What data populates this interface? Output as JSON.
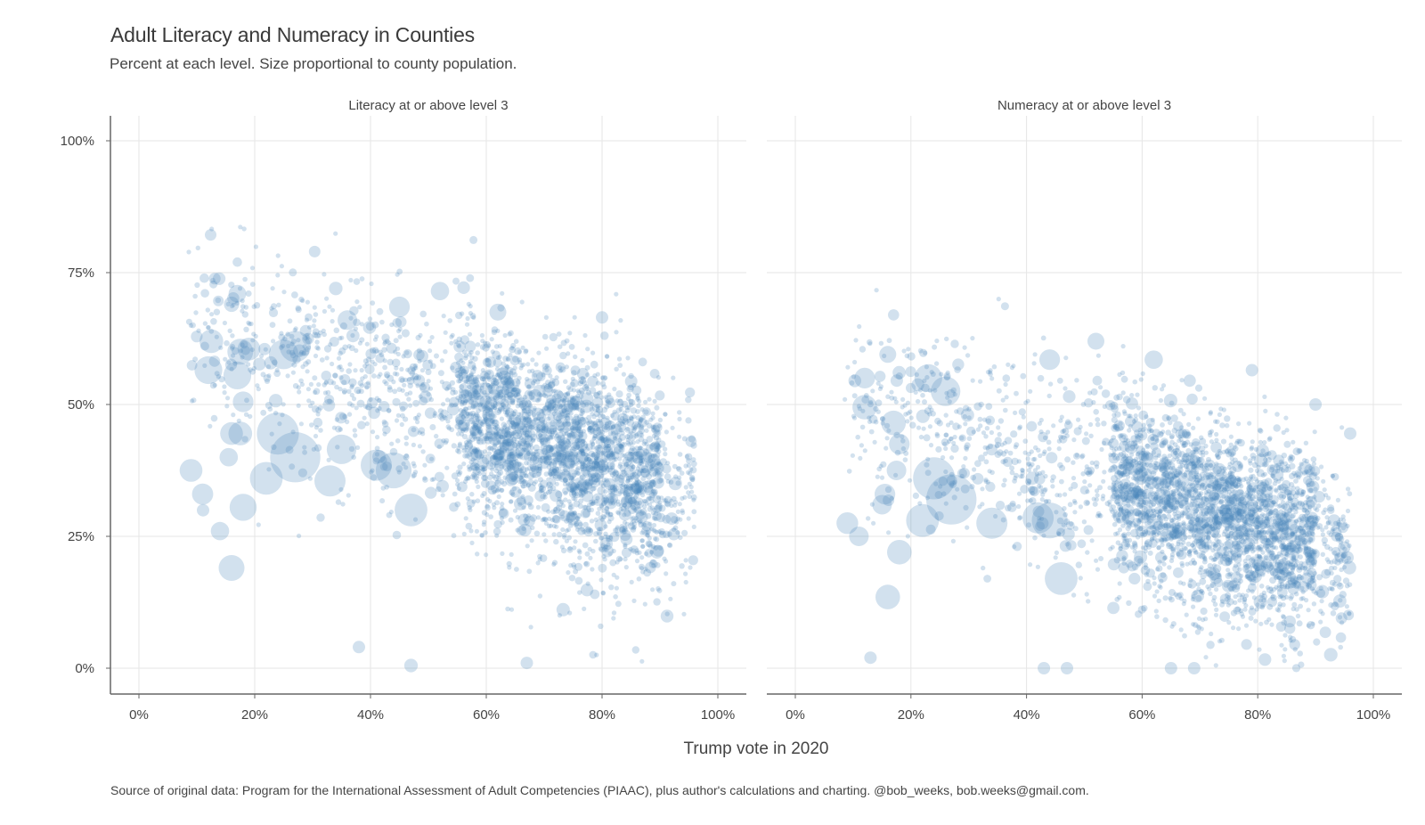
{
  "chart_data": {
    "type": "scatter",
    "title": "Adult Literacy and Numeracy in Counties",
    "subtitle": "Percent at each level. Size proportional to county population.",
    "xlabel": "Trump vote in 2020",
    "ylabel": "",
    "xlim": [
      -5,
      105
    ],
    "ylim": [
      -5,
      105
    ],
    "x_ticks": [
      0,
      20,
      40,
      60,
      80,
      100
    ],
    "x_tick_labels": [
      "0%",
      "20%",
      "40%",
      "60%",
      "80%",
      "100%"
    ],
    "y_ticks": [
      0,
      25,
      50,
      75,
      100
    ],
    "y_tick_labels": [
      "0%",
      "25%",
      "50%",
      "75%",
      "100%"
    ],
    "grid": true,
    "point_color": "#4a86bd",
    "point_opacity": 0.25,
    "facets": [
      {
        "label": "Literacy at or above level 3",
        "trend": {
          "center_x": 60,
          "center_y": 47,
          "slope": -0.38,
          "spread": 8.5
        },
        "points": [
          {
            "x": 17,
            "y": 77,
            "pop": 1
          },
          {
            "x": 12.5,
            "y": 62,
            "pop": 20
          },
          {
            "x": 12,
            "y": 56.5,
            "pop": 30
          },
          {
            "x": 17.5,
            "y": 60,
            "pop": 25
          },
          {
            "x": 19,
            "y": 60.5,
            "pop": 18
          },
          {
            "x": 17,
            "y": 55.5,
            "pop": 30
          },
          {
            "x": 18,
            "y": 50.5,
            "pop": 14
          },
          {
            "x": 16,
            "y": 44.5,
            "pop": 18
          },
          {
            "x": 17.5,
            "y": 44.5,
            "pop": 20
          },
          {
            "x": 15.5,
            "y": 40,
            "pop": 10
          },
          {
            "x": 9,
            "y": 37.5,
            "pop": 18
          },
          {
            "x": 11,
            "y": 33,
            "pop": 15
          },
          {
            "x": 18,
            "y": 30.5,
            "pop": 28
          },
          {
            "x": 14,
            "y": 26,
            "pop": 10
          },
          {
            "x": 16,
            "y": 19,
            "pop": 25
          },
          {
            "x": 24,
            "y": 44.5,
            "pop": 80
          },
          {
            "x": 27,
            "y": 40,
            "pop": 120
          },
          {
            "x": 22,
            "y": 36,
            "pop": 45
          },
          {
            "x": 33,
            "y": 35.5,
            "pop": 40
          },
          {
            "x": 35,
            "y": 41.5,
            "pop": 35
          },
          {
            "x": 47,
            "y": 30,
            "pop": 45
          },
          {
            "x": 41,
            "y": 38.5,
            "pop": 40
          },
          {
            "x": 44,
            "y": 37.5,
            "pop": 55
          },
          {
            "x": 27,
            "y": 61,
            "pop": 40
          },
          {
            "x": 25,
            "y": 59.5,
            "pop": 35
          },
          {
            "x": 36,
            "y": 66,
            "pop": 12
          },
          {
            "x": 52,
            "y": 71.5,
            "pop": 10
          },
          {
            "x": 45,
            "y": 68.5,
            "pop": 14
          },
          {
            "x": 62,
            "y": 67.5,
            "pop": 8
          },
          {
            "x": 80,
            "y": 66.5,
            "pop": 3
          },
          {
            "x": 47,
            "y": 0.5,
            "pop": 4
          },
          {
            "x": 67,
            "y": 1,
            "pop": 3
          },
          {
            "x": 38,
            "y": 4,
            "pop": 3
          },
          {
            "x": 16,
            "y": 69,
            "pop": 6
          },
          {
            "x": 17,
            "y": 71,
            "pop": 9
          },
          {
            "x": 34,
            "y": 72,
            "pop": 4
          }
        ]
      },
      {
        "label": "Numeracy at or above level 3",
        "trend": {
          "center_x": 60,
          "center_y": 34,
          "slope": -0.36,
          "spread": 8.0
        },
        "points": [
          {
            "x": 17,
            "y": 67,
            "pop": 2
          },
          {
            "x": 16,
            "y": 59.5,
            "pop": 8
          },
          {
            "x": 12,
            "y": 55,
            "pop": 14
          },
          {
            "x": 12,
            "y": 49.5,
            "pop": 22
          },
          {
            "x": 17,
            "y": 46.5,
            "pop": 22
          },
          {
            "x": 18,
            "y": 42.5,
            "pop": 14
          },
          {
            "x": 17.5,
            "y": 37.5,
            "pop": 12
          },
          {
            "x": 15.5,
            "y": 33,
            "pop": 14
          },
          {
            "x": 15,
            "y": 31,
            "pop": 12
          },
          {
            "x": 9,
            "y": 27.5,
            "pop": 16
          },
          {
            "x": 11,
            "y": 25,
            "pop": 12
          },
          {
            "x": 18,
            "y": 22,
            "pop": 22
          },
          {
            "x": 16,
            "y": 13.5,
            "pop": 22
          },
          {
            "x": 24,
            "y": 36,
            "pop": 80
          },
          {
            "x": 27,
            "y": 32,
            "pop": 120
          },
          {
            "x": 22,
            "y": 28,
            "pop": 45
          },
          {
            "x": 34,
            "y": 27.5,
            "pop": 40
          },
          {
            "x": 46,
            "y": 17,
            "pop": 45
          },
          {
            "x": 42,
            "y": 28.5,
            "pop": 40
          },
          {
            "x": 44,
            "y": 28,
            "pop": 55
          },
          {
            "x": 23,
            "y": 55,
            "pop": 30
          },
          {
            "x": 26,
            "y": 52.5,
            "pop": 35
          },
          {
            "x": 52,
            "y": 62,
            "pop": 8
          },
          {
            "x": 62,
            "y": 58.5,
            "pop": 10
          },
          {
            "x": 44,
            "y": 58.5,
            "pop": 14
          },
          {
            "x": 79,
            "y": 56.5,
            "pop": 3
          },
          {
            "x": 43,
            "y": 0,
            "pop": 3
          },
          {
            "x": 47,
            "y": 0,
            "pop": 3
          },
          {
            "x": 65,
            "y": 0,
            "pop": 3
          },
          {
            "x": 69,
            "y": 0,
            "pop": 3
          },
          {
            "x": 13,
            "y": 2,
            "pop": 3
          },
          {
            "x": 96,
            "y": 44.5,
            "pop": 3
          },
          {
            "x": 90,
            "y": 50,
            "pop": 3
          }
        ]
      }
    ]
  },
  "caption": "Source of original data: Program for the International Assessment of Adult Competencies (PIAAC), plus author's calculations and charting. @bob_weeks, bob.weeks@gmail.com."
}
